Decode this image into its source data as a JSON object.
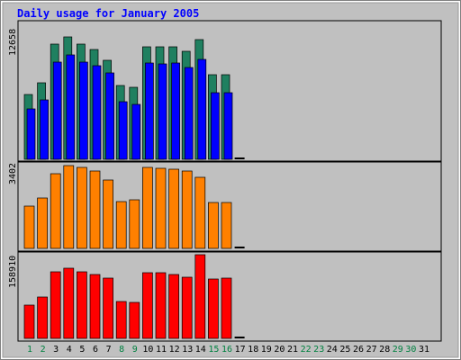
{
  "chart_data": {
    "type": "bar",
    "title": "Daily usage for January 2005",
    "days": [
      "1",
      "2",
      "3",
      "4",
      "5",
      "6",
      "7",
      "8",
      "9",
      "10",
      "11",
      "12",
      "13",
      "14",
      "15",
      "16",
      "17",
      "18",
      "19",
      "20",
      "21",
      "22",
      "23",
      "24",
      "25",
      "26",
      "27",
      "28",
      "29",
      "30",
      "31"
    ],
    "weekend_days": [
      "1",
      "2",
      "8",
      "9",
      "15",
      "16",
      "22",
      "23",
      "29",
      "30"
    ],
    "panels": [
      {
        "max_label": "12658",
        "ymax": 12658,
        "series": [
          {
            "values": [
              6118,
              7180,
              10887,
              11587,
              10841,
              10402,
              9357,
              7000,
              6783,
              10629,
              10578,
              10594,
              10152,
              11267,
              7955,
              7955,
              0,
              0,
              0,
              0,
              0,
              0,
              0,
              0,
              0,
              0,
              0,
              0,
              0,
              0,
              0
            ],
            "color": "#1f8060"
          },
          {
            "values": [
              4784,
              5573,
              9184,
              9891,
              9170,
              8869,
              8156,
              5430,
              5223,
              9057,
              9012,
              9104,
              8688,
              9448,
              6307,
              6307,
              0,
              0,
              0,
              0,
              0,
              0,
              0,
              0,
              0,
              0,
              0,
              0,
              0,
              0,
              0
            ],
            "color": "#0000ff"
          }
        ]
      },
      {
        "max_label": "3402",
        "ymax": 3402,
        "series": [
          {
            "values": [
              1737,
              2087,
              3060,
              3402,
              3310,
              3172,
              2807,
              1929,
              1999,
              3340,
              3284,
              3252,
              3187,
              2925,
              1895,
              1895,
              0,
              0,
              0,
              0,
              0,
              0,
              0,
              0,
              0,
              0,
              0,
              0,
              0,
              0,
              0
            ],
            "color": "#ff8000"
          }
        ]
      },
      {
        "max_label": "158910",
        "ymax": 158910,
        "series": [
          {
            "values": [
              63760,
              78000,
              127000,
              134000,
              127000,
              122000,
              115000,
              69800,
              67800,
              125000,
              125000,
              122000,
              117000,
              158910,
              113000,
              114000,
              0,
              0,
              0,
              0,
              0,
              0,
              0,
              0,
              0,
              0,
              0,
              0,
              0,
              0,
              0
            ],
            "color": "#ff0000"
          }
        ]
      }
    ],
    "colors": {
      "background": "#c0c0c0",
      "title": "#0000ff",
      "weekday_label": "#000000",
      "weekend_label": "#008040",
      "zero_bar": "#000000"
    }
  }
}
